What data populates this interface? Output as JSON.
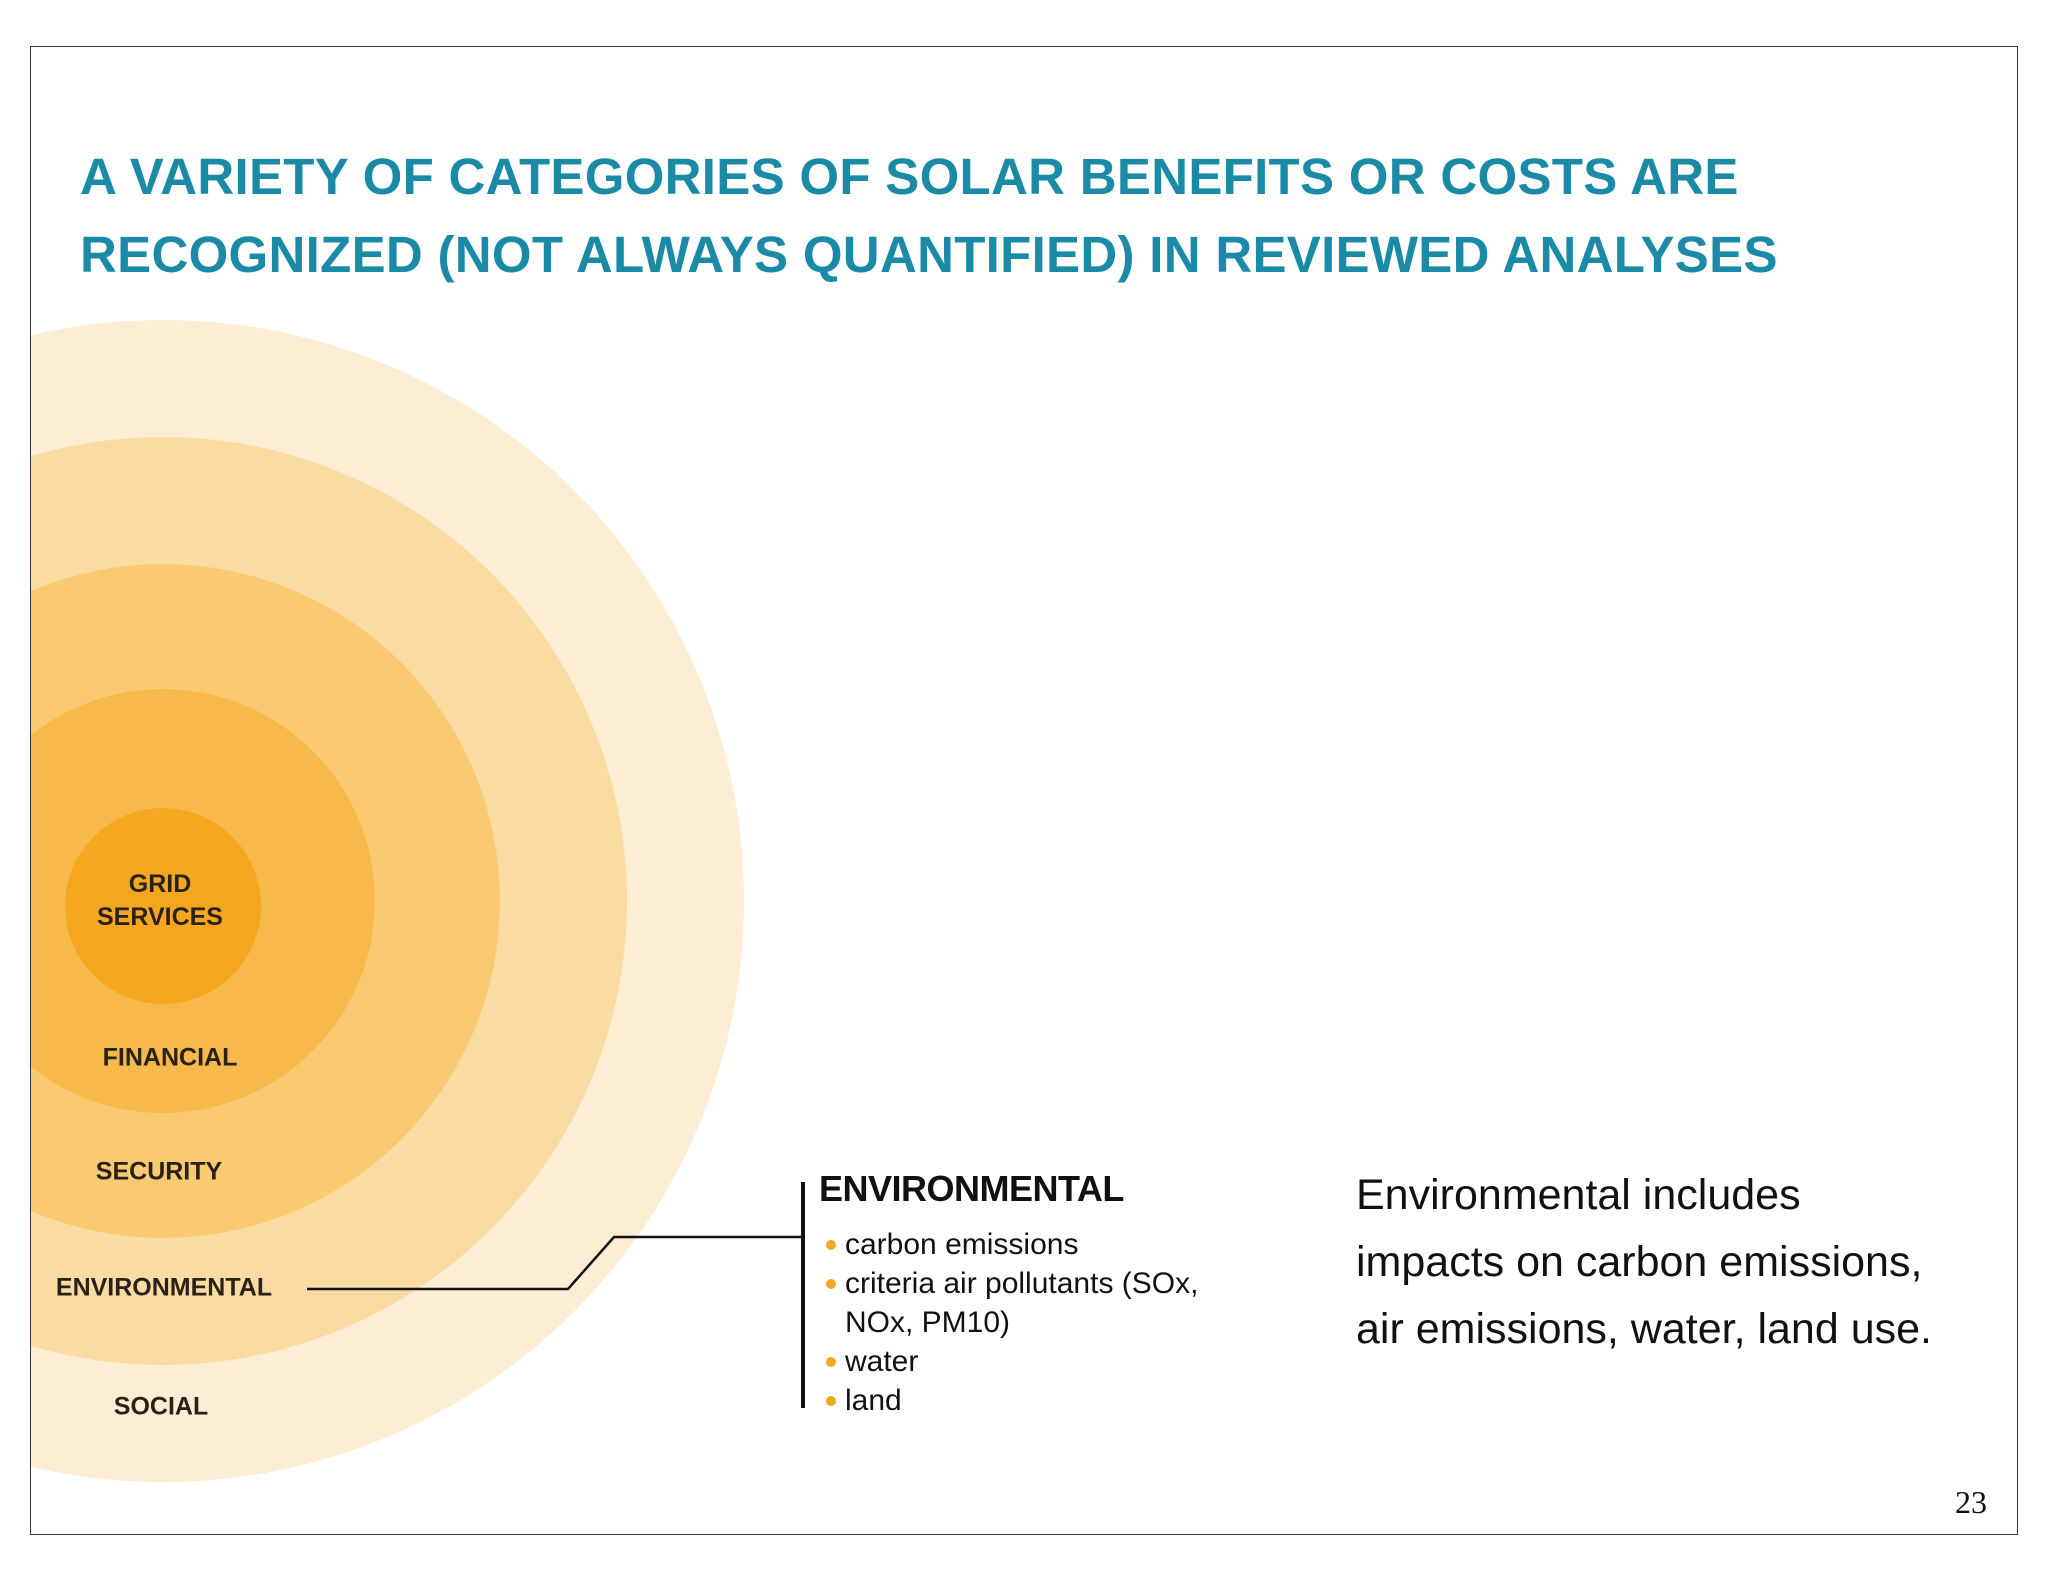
{
  "slide": {
    "title_lines": [
      "A VARIETY OF CATEGORIES OF SOLAR BENEFITS OR COSTS ARE",
      "RECOGNIZED (NOT ALWAYS QUANTIFIED) IN REVIEWED ANALYSES"
    ],
    "page_number": "23"
  },
  "rings": {
    "labels": {
      "grid_services": [
        "GRID",
        "SERVICES"
      ],
      "financial": "FINANCIAL",
      "security": "SECURITY",
      "environmental": "ENVIRONMENTAL",
      "social": "SOCIAL"
    },
    "colors": [
      "#fdedd4",
      "#fadca3",
      "#f9ca72",
      "#f7b94a",
      "#f5a81f"
    ]
  },
  "detail": {
    "heading": "ENVIRONMENTAL",
    "bullets": [
      "carbon emissions",
      "criteria air pollutants (SOx, NOx, PM10)",
      "water",
      "land"
    ],
    "bullet_color": "#f5a623"
  },
  "description_lines": [
    "Environmental includes",
    "impacts on carbon emissions,",
    "air emissions, water, land use."
  ]
}
